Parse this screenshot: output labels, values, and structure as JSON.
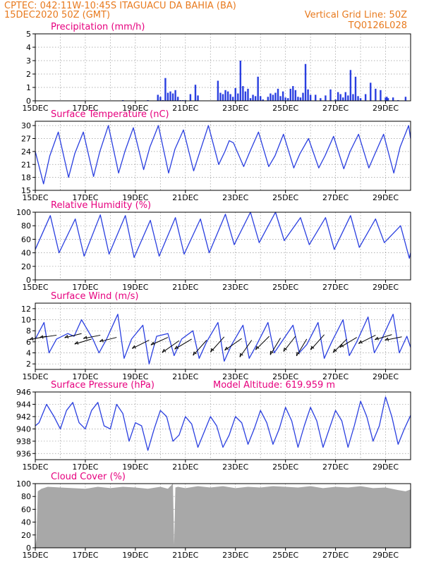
{
  "header": {
    "line1": "CPTEC:   042:11W-10:45S   ITAGUACU DA BAHIA (BA)",
    "line2": "15DEC2020 50Z (GMT)",
    "grid_note": "Vertical Grid Line: 50Z",
    "code": "TQ0126L028"
  },
  "colors": {
    "header": "#e87a1e",
    "title": "#e6007e",
    "series": "#2a3fe0",
    "cloud": "#a8a8a8",
    "arrow": "#000000"
  },
  "x_tick_labels": [
    "15DEC",
    "17DEC",
    "19DEC",
    "21DEC",
    "23DEC",
    "25DEC",
    "27DEC",
    "29DEC"
  ],
  "chart_data": [
    {
      "id": "precip",
      "type": "bar",
      "title": "Precipitation (mm/h)",
      "xlabel": "",
      "ylabel": "",
      "ylim": [
        0,
        5
      ],
      "yticks": [
        0,
        1,
        2,
        3,
        4,
        5
      ],
      "xlim": [
        0,
        15
      ],
      "grid": "dashed",
      "x_day": [
        0.5,
        1.5,
        2.5,
        3.5,
        4.5,
        4.9,
        5.0,
        5.1,
        5.2,
        5.3,
        5.4,
        5.5,
        5.6,
        5.7,
        5.8,
        5.9,
        6.0,
        6.2,
        6.4,
        6.5,
        7.3,
        7.4,
        7.5,
        7.6,
        7.7,
        7.8,
        7.9,
        8.0,
        8.1,
        8.2,
        8.3,
        8.4,
        8.5,
        8.6,
        8.7,
        8.8,
        8.9,
        9.0,
        9.1,
        9.3,
        9.4,
        9.5,
        9.6,
        9.7,
        9.8,
        9.9,
        10.0,
        10.1,
        10.2,
        10.3,
        10.4,
        10.5,
        10.6,
        10.7,
        10.8,
        10.9,
        11.0,
        11.2,
        11.4,
        11.6,
        11.8,
        12.0,
        12.1,
        12.2,
        12.3,
        12.4,
        12.5,
        12.6,
        12.7,
        12.8,
        12.9,
        13.0,
        13.2,
        13.4,
        13.6,
        13.8,
        14.0,
        14.05,
        14.1,
        14.3,
        14.5,
        14.8
      ],
      "values": [
        0.02,
        0.02,
        0.03,
        0.05,
        0.05,
        0.45,
        0.3,
        0.05,
        1.7,
        0.6,
        0.7,
        0.55,
        0.8,
        0.3,
        0.05,
        0.05,
        0.05,
        0.5,
        1.2,
        0.4,
        1.5,
        0.6,
        0.5,
        0.8,
        0.7,
        0.5,
        0.3,
        0.95,
        0.55,
        3.0,
        1.1,
        0.7,
        0.9,
        0.2,
        0.45,
        0.35,
        1.8,
        0.35,
        0.1,
        0.3,
        0.55,
        0.45,
        0.6,
        0.9,
        0.35,
        0.7,
        0.25,
        0.2,
        0.9,
        1.1,
        0.8,
        0.3,
        0.25,
        0.6,
        2.75,
        0.85,
        0.45,
        0.45,
        0.2,
        0.4,
        0.85,
        0.1,
        0.65,
        0.5,
        0.25,
        0.65,
        0.4,
        2.3,
        0.5,
        1.8,
        0.35,
        0.2,
        0.5,
        1.35,
        0.9,
        0.8,
        0.25,
        0.3,
        0.2,
        0.25,
        0.05,
        0.3
      ]
    },
    {
      "id": "temp",
      "type": "line",
      "title": "Surface Temperature (nC)",
      "xlabel": "",
      "ylabel": "",
      "ylim": [
        15,
        31
      ],
      "yticks": [
        15,
        18,
        21,
        24,
        27,
        30
      ],
      "xlim": [
        0,
        15
      ],
      "grid": "dashed",
      "x": [
        0,
        0.33,
        0.58,
        0.92,
        1.33,
        1.58,
        1.92,
        2.33,
        2.58,
        2.92,
        3.33,
        3.58,
        3.92,
        4.33,
        4.58,
        4.92,
        5.33,
        5.58,
        5.92,
        6.33,
        6.58,
        6.92,
        7.33,
        7.58,
        7.75,
        7.92,
        8.33,
        8.58,
        8.92,
        9.33,
        9.58,
        9.92,
        10.33,
        10.58,
        10.92,
        11.33,
        11.58,
        11.92,
        12.33,
        12.58,
        12.92,
        13.33,
        13.58,
        13.92,
        14.33,
        14.58,
        14.92,
        15
      ],
      "y": [
        24,
        16.5,
        23,
        28.5,
        18,
        23.5,
        28.5,
        18.2,
        24,
        30,
        19,
        24,
        29.5,
        19.8,
        25,
        30,
        19,
        24.5,
        29,
        19.5,
        24,
        30,
        21,
        24,
        26.5,
        26,
        20.5,
        24,
        28.5,
        20.5,
        23,
        28,
        20.2,
        23.5,
        27,
        20.2,
        23,
        27.5,
        20,
        24,
        28,
        20.2,
        23.5,
        28,
        19,
        25,
        30,
        27
      ]
    },
    {
      "id": "rh",
      "type": "line",
      "title": "Relative Humidity (%)",
      "xlabel": "",
      "ylabel": "",
      "ylim": [
        0,
        100
      ],
      "yticks": [
        0,
        20,
        40,
        60,
        80,
        100
      ],
      "xlim": [
        0,
        15
      ],
      "grid": "dashed",
      "x": [
        0,
        0.6,
        0.95,
        1.6,
        1.95,
        2.6,
        2.95,
        3.6,
        3.95,
        4.6,
        4.95,
        5.6,
        5.95,
        6.6,
        6.95,
        7.6,
        7.95,
        8.6,
        8.95,
        9.6,
        9.95,
        10.6,
        10.95,
        11.6,
        11.95,
        12.6,
        12.95,
        13.6,
        13.95,
        14.6,
        14.95,
        15
      ],
      "y": [
        45,
        95,
        40,
        90,
        35,
        96,
        38,
        95,
        33,
        88,
        35,
        92,
        38,
        90,
        40,
        97,
        52,
        100,
        55,
        100,
        58,
        92,
        52,
        92,
        45,
        95,
        48,
        90,
        55,
        80,
        32,
        40
      ]
    },
    {
      "id": "wind",
      "type": "line",
      "title": "Surface Wind (m/s)",
      "xlabel": "",
      "ylabel": "",
      "ylim": [
        1,
        13
      ],
      "yticks": [
        2,
        4,
        6,
        8,
        10,
        12
      ],
      "xlim": [
        0,
        15
      ],
      "grid": "dashed",
      "x": [
        0,
        0.35,
        0.55,
        0.85,
        1.3,
        1.55,
        1.85,
        2.3,
        2.55,
        2.85,
        3.3,
        3.55,
        3.85,
        4.3,
        4.55,
        4.85,
        5.3,
        5.55,
        5.85,
        6.3,
        6.55,
        6.85,
        7.3,
        7.55,
        7.85,
        8.3,
        8.55,
        8.85,
        9.3,
        9.55,
        9.85,
        10.3,
        10.55,
        10.85,
        11.3,
        11.55,
        11.85,
        12.3,
        12.55,
        12.85,
        13.3,
        13.55,
        13.85,
        14.3,
        14.55,
        14.85,
        15
      ],
      "y": [
        6.5,
        9.5,
        4,
        6.5,
        7.5,
        7,
        10,
        6.5,
        4,
        6.5,
        11,
        3,
        6.5,
        9,
        2,
        7,
        7.5,
        3.5,
        6.5,
        8,
        3,
        6,
        9.5,
        2.5,
        5.5,
        9,
        3,
        5.5,
        9.5,
        4,
        6,
        9,
        4,
        5.5,
        9.5,
        3,
        6,
        10,
        3.5,
        6,
        10.5,
        4,
        6.5,
        11,
        4,
        7,
        5
      ],
      "barbs": [
        {
          "day": 0.45,
          "speed": 7,
          "u": -1,
          "v": -0.2
        },
        {
          "day": 0.85,
          "speed": 7.2,
          "u": -1,
          "v": -0.15
        },
        {
          "day": 1.85,
          "speed": 7.5,
          "u": -1,
          "v": -0.25
        },
        {
          "day": 2.25,
          "speed": 6.5,
          "u": -1,
          "v": -0.3
        },
        {
          "day": 2.6,
          "speed": 7.2,
          "u": -1,
          "v": -0.2
        },
        {
          "day": 3.25,
          "speed": 6.8,
          "u": -1,
          "v": -0.25
        },
        {
          "day": 4.55,
          "speed": 6.3,
          "u": -1,
          "v": -0.5
        },
        {
          "day": 5.3,
          "speed": 6.8,
          "u": -1,
          "v": -0.45
        },
        {
          "day": 5.75,
          "speed": 6.2,
          "u": -1,
          "v": -0.7
        },
        {
          "day": 6.25,
          "speed": 6.5,
          "u": -1,
          "v": -0.6
        },
        {
          "day": 6.85,
          "speed": 6.3,
          "u": -0.8,
          "v": -0.9
        },
        {
          "day": 7.55,
          "speed": 6.9,
          "u": -0.8,
          "v": -0.9
        },
        {
          "day": 8.25,
          "speed": 6.6,
          "u": -1,
          "v": -0.7
        },
        {
          "day": 8.65,
          "speed": 6.3,
          "u": -0.7,
          "v": -1
        },
        {
          "day": 9.35,
          "speed": 7,
          "u": -0.8,
          "v": -0.8
        },
        {
          "day": 9.8,
          "speed": 6.7,
          "u": -0.6,
          "v": -1
        },
        {
          "day": 10.4,
          "speed": 7,
          "u": -0.7,
          "v": -0.9
        },
        {
          "day": 10.85,
          "speed": 6.5,
          "u": -0.6,
          "v": -1
        },
        {
          "day": 11.55,
          "speed": 7.3,
          "u": -0.8,
          "v": -0.9
        },
        {
          "day": 12.45,
          "speed": 6.5,
          "u": -0.8,
          "v": -0.8
        },
        {
          "day": 12.85,
          "speed": 6.8,
          "u": -1,
          "v": -0.6
        },
        {
          "day": 13.6,
          "speed": 7.2,
          "u": -1,
          "v": -0.5
        },
        {
          "day": 14.25,
          "speed": 7.3,
          "u": -1,
          "v": -0.3
        },
        {
          "day": 14.65,
          "speed": 6.9,
          "u": -1,
          "v": -0.2
        }
      ]
    },
    {
      "id": "press",
      "type": "line",
      "title": "Surface Pressure (hPa)",
      "annotation": "Model Altitude: 619.959  m",
      "xlabel": "",
      "ylabel": "",
      "ylim": [
        935,
        946
      ],
      "yticks": [
        936,
        938,
        940,
        942,
        944,
        946
      ],
      "xlim": [
        0,
        15
      ],
      "grid": "dashed",
      "x": [
        0,
        0.15,
        0.45,
        0.75,
        1.0,
        1.25,
        1.5,
        1.75,
        2.0,
        2.25,
        2.5,
        2.75,
        3.0,
        3.25,
        3.5,
        3.75,
        4.0,
        4.25,
        4.5,
        4.75,
        5.0,
        5.25,
        5.5,
        5.75,
        6.0,
        6.25,
        6.5,
        6.75,
        7.0,
        7.25,
        7.5,
        7.75,
        8.0,
        8.25,
        8.5,
        8.75,
        9.0,
        9.25,
        9.5,
        9.75,
        10.0,
        10.25,
        10.5,
        10.75,
        11.0,
        11.25,
        11.5,
        11.75,
        12.0,
        12.25,
        12.5,
        12.75,
        13.0,
        13.25,
        13.5,
        13.75,
        14.0,
        14.25,
        14.5,
        14.75,
        15
      ],
      "y": [
        940.5,
        941,
        944,
        942,
        940,
        943,
        944.3,
        941,
        940,
        943,
        944.3,
        940.5,
        940,
        944,
        942.5,
        938,
        941,
        940.5,
        936.5,
        940,
        943,
        942,
        938,
        939,
        942,
        940.8,
        937,
        939.5,
        942,
        940.5,
        937,
        939,
        942,
        941,
        937.5,
        940,
        943,
        941,
        937.5,
        940,
        943.5,
        941.3,
        937,
        940.5,
        943.5,
        941.3,
        937,
        940,
        943,
        941.3,
        937,
        940.5,
        944.5,
        942,
        938,
        940.5,
        945.2,
        942,
        937.5,
        940,
        942.2
      ]
    },
    {
      "id": "cloud",
      "type": "area",
      "title": "Cloud Cover (%)",
      "xlabel": "",
      "ylabel": "",
      "ylim": [
        0,
        100
      ],
      "yticks": [
        0,
        20,
        40,
        60,
        80,
        100
      ],
      "xlim": [
        0,
        15
      ],
      "grid": "dashed",
      "x": [
        0.05,
        0.1,
        0.25,
        0.5,
        1.0,
        1.5,
        2.0,
        2.5,
        3.0,
        3.5,
        4.0,
        4.5,
        5.0,
        5.3,
        5.5,
        5.55,
        5.6,
        5.7,
        6.0,
        6.5,
        7.0,
        7.5,
        8.0,
        8.5,
        9.0,
        9.5,
        10.0,
        10.5,
        11.0,
        11.5,
        12.0,
        12.5,
        13.0,
        13.5,
        14.0,
        14.5,
        14.8,
        15.0
      ],
      "y": [
        15,
        88,
        92,
        95,
        94,
        93,
        92,
        95,
        93,
        95,
        94,
        92,
        95,
        92,
        100,
        5,
        94,
        95,
        93,
        96,
        94,
        96,
        93,
        95,
        94,
        96,
        95,
        94,
        96,
        93,
        95,
        94,
        96,
        93,
        94,
        90,
        88,
        91
      ]
    }
  ]
}
